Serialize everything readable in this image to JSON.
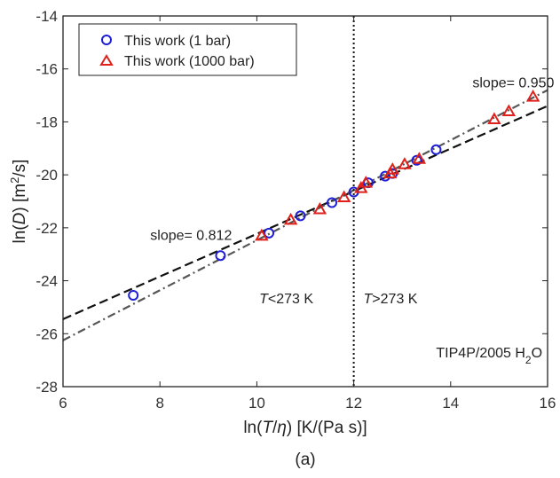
{
  "chart_data": {
    "type": "scatter",
    "x_label": {
      "pre": "ln(",
      "var": "T",
      "slash": "/",
      "var2": "η",
      "post": ") [K/(Pa s)]"
    },
    "y_label": {
      "pre": "ln(",
      "var": "D",
      "post": ") [m",
      "sup": "2",
      "tail": "/s]"
    },
    "xlim": [
      6,
      16
    ],
    "ylim": [
      -28,
      -14
    ],
    "x_ticks": [
      "6",
      "8",
      "10",
      "12",
      "14",
      "16"
    ],
    "y_ticks": [
      "-14",
      "-16",
      "-18",
      "-20",
      "-22",
      "-24",
      "-26",
      "-28"
    ],
    "grid": false,
    "legend_position": "top-left",
    "series": [
      {
        "name": "This work (1 bar)",
        "marker": "circle",
        "color": "#1f1fd6",
        "points": [
          [
            7.45,
            -24.55
          ],
          [
            9.25,
            -23.05
          ],
          [
            10.25,
            -22.2
          ],
          [
            10.9,
            -21.55
          ],
          [
            11.55,
            -21.05
          ],
          [
            12.0,
            -20.65
          ],
          [
            12.3,
            -20.3
          ],
          [
            12.65,
            -20.05
          ],
          [
            12.8,
            -19.95
          ],
          [
            13.3,
            -19.45
          ],
          [
            13.7,
            -19.05
          ]
        ]
      },
      {
        "name": "This work (1000 bar)",
        "marker": "triangle",
        "color": "#e0201a",
        "points": [
          [
            10.1,
            -22.3
          ],
          [
            10.7,
            -21.7
          ],
          [
            11.3,
            -21.3
          ],
          [
            11.8,
            -20.85
          ],
          [
            12.15,
            -20.5
          ],
          [
            12.25,
            -20.3
          ],
          [
            12.75,
            -19.95
          ],
          [
            12.8,
            -19.8
          ],
          [
            13.05,
            -19.6
          ],
          [
            13.35,
            -19.4
          ],
          [
            14.9,
            -17.9
          ],
          [
            15.2,
            -17.6
          ],
          [
            15.7,
            -17.05
          ]
        ]
      }
    ],
    "fit_lines": [
      {
        "style": "dashed",
        "color": "#111111",
        "points": [
          [
            6,
            -25.45
          ],
          [
            16,
            -17.4
          ]
        ]
      },
      {
        "style": "dashdot",
        "color": "#555555",
        "points": [
          [
            6,
            -26.25
          ],
          [
            16,
            -16.8
          ]
        ]
      }
    ],
    "vertical_line": {
      "x": 12,
      "style": "dotted",
      "color": "#111111"
    },
    "annotations": [
      {
        "text": "slope= 0.950",
        "x": 14.45,
        "y": -16.7
      },
      {
        "text": "slope= 0.812",
        "x": 7.8,
        "y": -22.45
      },
      {
        "text_var": "T",
        "text_rest": "<273 K",
        "x": 10.05,
        "y": -24.85
      },
      {
        "text_var": "T",
        "text_rest": ">273 K",
        "x": 12.2,
        "y": -24.85
      }
    ],
    "model_label": {
      "pre": "TIP4P/2005 H",
      "sub": "2",
      "post": "O",
      "x": 13.7,
      "y": -26.9
    },
    "caption": "(a)"
  }
}
